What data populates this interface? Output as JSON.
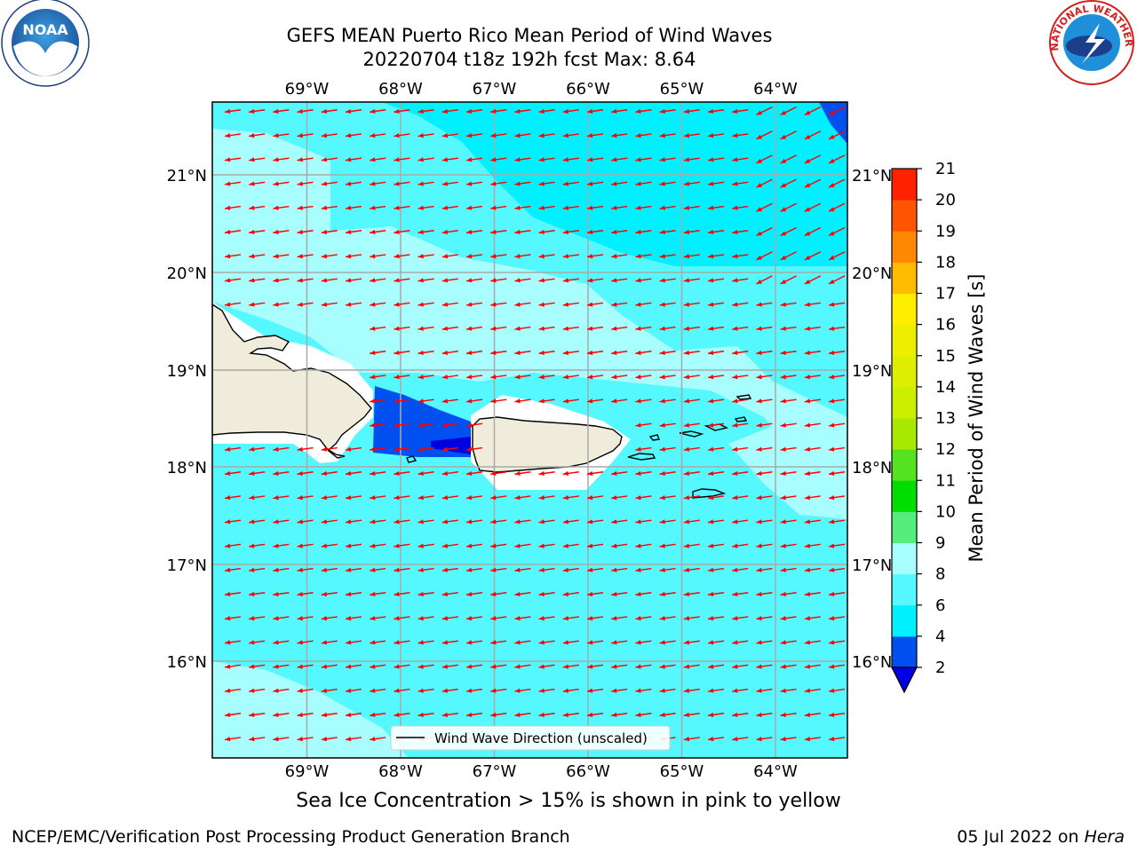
{
  "title": {
    "line1": "GEFS MEAN Puerto Rico Mean Period of Wind Waves",
    "line2": "20220704 t18z 192h fcst   Max: 8.64"
  },
  "map": {
    "lon_labels": [
      "69°W",
      "68°W",
      "67°W",
      "66°W",
      "65°W",
      "64°W"
    ],
    "lat_labels": [
      "21°N",
      "20°N",
      "19°N",
      "18°N",
      "17°N",
      "16°N"
    ],
    "lon_range": [
      -70.0,
      -63.25
    ],
    "lat_range": [
      15.0,
      21.75
    ],
    "land_color": "#efecdc",
    "vector_color": "#ff0000",
    "vector_direction": "toward west-southwest",
    "legend_label": "Wind Wave Direction (unscaled)"
  },
  "colorbar": {
    "title": "Mean Period of Wind Waves [s]",
    "ticks": [
      "2",
      "4",
      "6",
      "8",
      "9",
      "10",
      "11",
      "12",
      "13",
      "14",
      "15",
      "16",
      "17",
      "18",
      "19",
      "20",
      "21"
    ],
    "colors": [
      "#0050f0",
      "#00f0ff",
      "#55f8ff",
      "#a8fdff",
      "#55ee7d",
      "#00dd00",
      "#55e220",
      "#a9e800",
      "#ccee00",
      "#ddee00",
      "#eeee00",
      "#ffee00",
      "#ffbb00",
      "#ff8800",
      "#ff5500",
      "#ff2200"
    ],
    "under_color": "#0000e0"
  },
  "footnote": "Sea Ice Concentration > 15% is shown in pink to yellow",
  "footer": {
    "left": "NCEP/EMC/Verification Post Processing Product Generation Branch",
    "right_date": "05 Jul 2022 on ",
    "right_host": "Hera"
  },
  "logos": {
    "noaa_text": "NOAA",
    "nws_text": "NATIONAL WEATHER SERVICE"
  }
}
